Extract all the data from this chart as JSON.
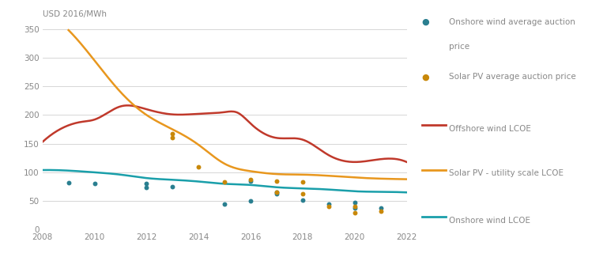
{
  "offshore_wind_lcoe_x": [
    2008,
    2009,
    2009.5,
    2010,
    2011,
    2012,
    2013,
    2014,
    2015,
    2015.5,
    2016,
    2017,
    2018,
    2019,
    2020,
    2021,
    2022
  ],
  "offshore_wind_lcoe_y": [
    153,
    182,
    188,
    192,
    215,
    210,
    201,
    202,
    205,
    204,
    185,
    160,
    157,
    130,
    118,
    123,
    118
  ],
  "solar_pv_lcoe_x": [
    2009,
    2010,
    2011,
    2012,
    2013,
    2014,
    2015,
    2016,
    2017,
    2018,
    2019,
    2020,
    2021,
    2022
  ],
  "solar_pv_lcoe_y": [
    348,
    295,
    240,
    200,
    175,
    148,
    115,
    102,
    97,
    96,
    94,
    91,
    89,
    88
  ],
  "onshore_wind_lcoe_x": [
    2008,
    2009,
    2010,
    2011,
    2012,
    2013,
    2014,
    2015,
    2016,
    2017,
    2018,
    2019,
    2020,
    2021,
    2022
  ],
  "onshore_wind_lcoe_y": [
    104,
    103,
    100,
    96,
    90,
    87,
    84,
    80,
    78,
    74,
    72,
    70,
    67,
    66,
    65
  ],
  "onshore_wind_auction_x": [
    2009,
    2010,
    2012,
    2012,
    2013,
    2015,
    2016,
    2016,
    2017,
    2017,
    2018,
    2019,
    2020,
    2020,
    2021
  ],
  "onshore_wind_auction_y": [
    82,
    80,
    80,
    74,
    75,
    45,
    50,
    85,
    62,
    65,
    52,
    45,
    38,
    47,
    38
  ],
  "solar_pv_auction_x": [
    2013,
    2013,
    2014,
    2015,
    2016,
    2017,
    2017,
    2018,
    2018,
    2019,
    2020,
    2020,
    2021
  ],
  "solar_pv_auction_y": [
    168,
    160,
    110,
    83,
    87,
    85,
    65,
    83,
    63,
    40,
    29,
    40,
    32
  ],
  "offshore_wind_color": "#c0392b",
  "solar_pv_color": "#e8971e",
  "onshore_wind_color": "#1a9faa",
  "onshore_wind_auction_color": "#2a7f90",
  "solar_pv_auction_color": "#c8880a",
  "ylabel": "USD 2016/MWh",
  "ylim": [
    0,
    355
  ],
  "xlim": [
    2008,
    2022
  ],
  "yticks": [
    0,
    50,
    100,
    150,
    200,
    250,
    300,
    350
  ],
  "xticks": [
    2008,
    2010,
    2012,
    2014,
    2016,
    2018,
    2020,
    2022
  ],
  "background_color": "#ffffff",
  "grid_color": "#d0d0d0",
  "text_color": "#888888",
  "legend_labels": [
    "Onshore wind average auction\nprice",
    "Solar PV average auction price",
    "Offshore wind LCOE",
    "Solar PV - utility scale LCOE",
    "Onshore wind LCOE"
  ]
}
